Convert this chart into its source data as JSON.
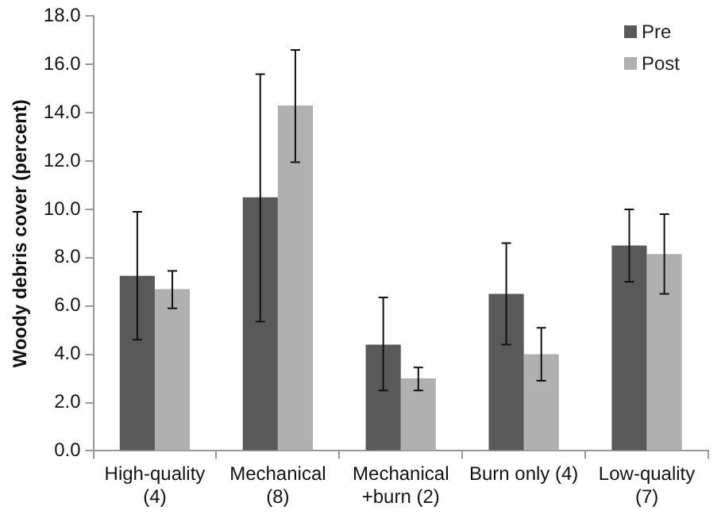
{
  "chart_data": {
    "type": "bar",
    "ylabel": "Woody debris cover (percent)",
    "categories": [
      "High-quality (4)",
      "Mechanical (8)",
      "Mechanical +burn (2)",
      "Burn only (4)",
      "Low-quality (7)"
    ],
    "series": [
      {
        "name": "Pre",
        "color": "#595959",
        "values": [
          7.25,
          10.5,
          4.4,
          6.5,
          8.5
        ],
        "errors": [
          [
            4.6,
            9.9
          ],
          [
            5.35,
            15.6
          ],
          [
            2.5,
            6.35
          ],
          [
            4.4,
            8.6
          ],
          [
            7.0,
            10.0
          ]
        ]
      },
      {
        "name": "Post",
        "color": "#b0b0b0",
        "values": [
          6.7,
          14.3,
          3.0,
          4.0,
          8.15
        ],
        "errors": [
          [
            5.9,
            7.45
          ],
          [
            11.95,
            16.6
          ],
          [
            2.5,
            3.45
          ],
          [
            2.9,
            5.1
          ],
          [
            6.5,
            9.8
          ]
        ]
      }
    ],
    "ylim": [
      0,
      18
    ],
    "yticks": [
      {
        "value": 0,
        "label": "0.0"
      },
      {
        "value": 2,
        "label": "2.0"
      },
      {
        "value": 4,
        "label": "4.0"
      },
      {
        "value": 6,
        "label": "6.0"
      },
      {
        "value": 8,
        "label": "8.0"
      },
      {
        "value": 10,
        "label": "10.0"
      },
      {
        "value": 12,
        "label": "12.0"
      },
      {
        "value": 14,
        "label": "14.0"
      },
      {
        "value": 16,
        "label": "16.0"
      },
      {
        "value": 18,
        "label": "18.0"
      }
    ],
    "grid": false,
    "legend": "top right"
  }
}
